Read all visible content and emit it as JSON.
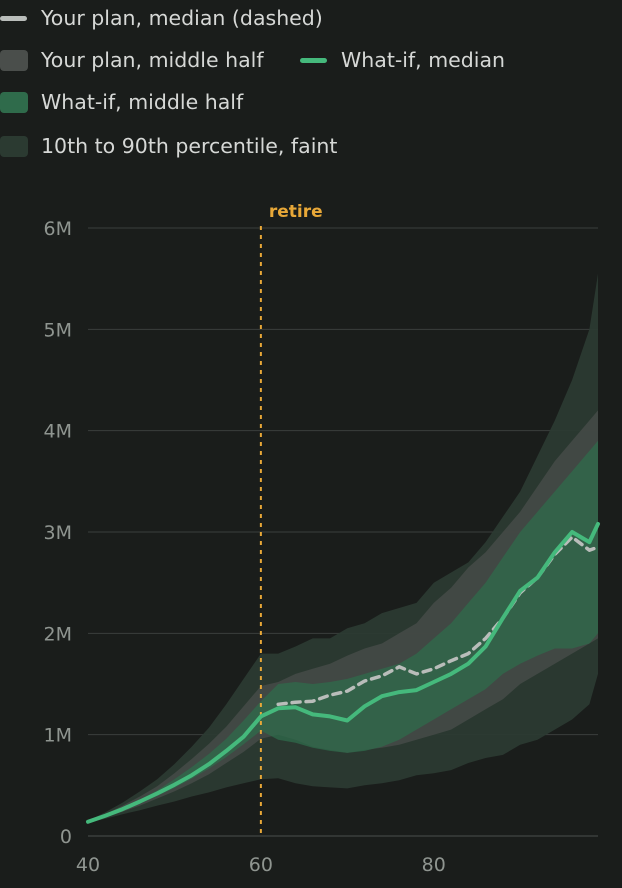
{
  "legend": {
    "yours_median": "Your plan, median (dashed)",
    "yours_middle": "Your plan, middle half",
    "whatif_median": "What-if, median",
    "whatif_middle": "What-if, middle half",
    "outer_band": "10th to 90th percentile, faint"
  },
  "colors": {
    "background": "#1a1d1b",
    "grid": "#3a3f3c",
    "axis_text": "#8f9590",
    "yours_median": "#b9bdba",
    "yours_band": "#4a4e4b",
    "whatif_median": "#45b97c",
    "whatif_band": "#2f6b4b",
    "outer_band": "#2b3a31",
    "retire": "#e8a838"
  },
  "chart_data": {
    "type": "area",
    "xlim": [
      40,
      99
    ],
    "ylim": [
      0,
      6000000
    ],
    "xticks": [
      40,
      60,
      80
    ],
    "xtick_labels": [
      "40",
      "60",
      "80"
    ],
    "yticks": [
      0,
      1000000,
      2000000,
      3000000,
      4000000,
      5000000,
      6000000
    ],
    "ytick_labels": [
      "0",
      "1M",
      "2M",
      "3M",
      "4M",
      "5M",
      "6M"
    ],
    "grid": true,
    "annotation": {
      "label": "retire",
      "x": 60
    },
    "x": [
      40,
      42,
      44,
      46,
      48,
      50,
      52,
      54,
      56,
      58,
      60,
      62,
      64,
      66,
      68,
      70,
      72,
      74,
      76,
      78,
      80,
      82,
      84,
      86,
      88,
      90,
      92,
      94,
      96,
      98,
      99
    ],
    "series": [
      {
        "name": "10th to 90th percentile, faint",
        "role": "outer_band",
        "lower": [
          130000,
          170000,
          215000,
          255000,
          300000,
          340000,
          390000,
          430000,
          480000,
          520000,
          560000,
          570000,
          520000,
          490000,
          480000,
          470000,
          500000,
          520000,
          550000,
          600000,
          620000,
          650000,
          720000,
          770000,
          800000,
          900000,
          950000,
          1050000,
          1150000,
          1300000,
          1600000
        ],
        "upper": [
          150000,
          235000,
          330000,
          440000,
          560000,
          710000,
          880000,
          1070000,
          1300000,
          1550000,
          1800000,
          1800000,
          1870000,
          1950000,
          1950000,
          2050000,
          2100000,
          2200000,
          2250000,
          2300000,
          2500000,
          2600000,
          2700000,
          2900000,
          3150000,
          3400000,
          3750000,
          4100000,
          4500000,
          5000000,
          5550000
        ]
      },
      {
        "name": "Your plan, middle half",
        "role": "yours_band",
        "lower": [
          135000,
          185000,
          240000,
          300000,
          370000,
          440000,
          520000,
          610000,
          720000,
          830000,
          960000,
          1000000,
          950000,
          880000,
          850000,
          820000,
          850000,
          870000,
          900000,
          950000,
          1000000,
          1050000,
          1150000,
          1250000,
          1350000,
          1500000,
          1600000,
          1700000,
          1800000,
          1900000,
          1950000
        ],
        "upper": [
          145000,
          215000,
          300000,
          390000,
          490000,
          620000,
          760000,
          910000,
          1080000,
          1280000,
          1480000,
          1520000,
          1600000,
          1650000,
          1700000,
          1780000,
          1850000,
          1900000,
          2000000,
          2100000,
          2300000,
          2450000,
          2650000,
          2800000,
          3000000,
          3200000,
          3450000,
          3700000,
          3900000,
          4100000,
          4200000
        ]
      },
      {
        "name": "What-if, middle half",
        "role": "whatif_band",
        "lower": [
          138000,
          195000,
          255000,
          320000,
          395000,
          475000,
          565000,
          665000,
          780000,
          905000,
          1040000,
          950000,
          920000,
          870000,
          840000,
          820000,
          840000,
          880000,
          950000,
          1050000,
          1150000,
          1250000,
          1350000,
          1450000,
          1600000,
          1700000,
          1780000,
          1850000,
          1850000,
          1900000,
          2000000
        ],
        "upper": [
          142000,
          205000,
          280000,
          360000,
          450000,
          560000,
          680000,
          810000,
          960000,
          1140000,
          1330000,
          1500000,
          1520000,
          1500000,
          1520000,
          1550000,
          1600000,
          1650000,
          1700000,
          1800000,
          1950000,
          2100000,
          2300000,
          2500000,
          2750000,
          3000000,
          3200000,
          3400000,
          3600000,
          3800000,
          3900000
        ]
      },
      {
        "name": "Your plan, median (dashed)",
        "role": "yours_median",
        "values": [
          null,
          null,
          null,
          null,
          null,
          null,
          null,
          null,
          null,
          null,
          null,
          1300000,
          1320000,
          1330000,
          1390000,
          1430000,
          1530000,
          1580000,
          1670000,
          1600000,
          1650000,
          1730000,
          1800000,
          1950000,
          2150000,
          2400000,
          2550000,
          2780000,
          2950000,
          2820000,
          2850000
        ]
      },
      {
        "name": "What-if, median",
        "role": "whatif_median",
        "values": [
          140000,
          200000,
          265000,
          340000,
          420000,
          505000,
          600000,
          710000,
          840000,
          980000,
          1180000,
          1260000,
          1270000,
          1200000,
          1180000,
          1140000,
          1280000,
          1380000,
          1420000,
          1440000,
          1520000,
          1600000,
          1700000,
          1870000,
          2150000,
          2420000,
          2550000,
          2800000,
          3000000,
          2900000,
          3080000
        ]
      }
    ]
  }
}
